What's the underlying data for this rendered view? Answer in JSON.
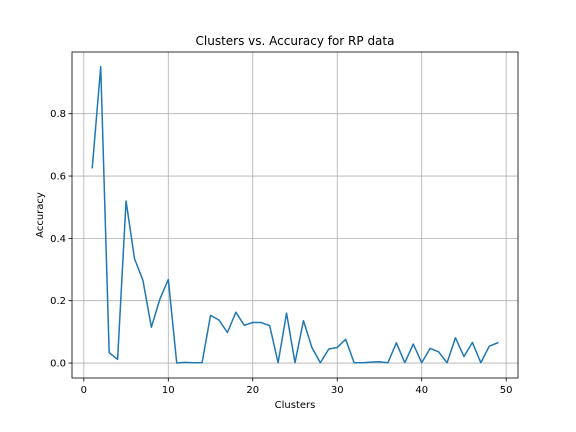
{
  "chart_data": {
    "type": "line",
    "title": "Clusters vs. Accuracy for RP data",
    "xlabel": "Clusters",
    "ylabel": "Accuracy",
    "xlim": [
      -1.4,
      51.4
    ],
    "ylim": [
      -0.048,
      0.998
    ],
    "xticks": [
      0,
      10,
      20,
      30,
      40,
      50
    ],
    "yticks": [
      0.0,
      0.2,
      0.4,
      0.6,
      0.8
    ],
    "ytick_labels": [
      "0.0",
      "0.2",
      "0.4",
      "0.6",
      "0.8"
    ],
    "grid": true,
    "series": [
      {
        "color": "#1f77b4",
        "x": [
          1,
          2,
          3,
          4,
          5,
          6,
          7,
          8,
          9,
          10,
          11,
          12,
          13,
          14,
          15,
          16,
          17,
          18,
          19,
          20,
          21,
          22,
          23,
          24,
          25,
          26,
          27,
          28,
          29,
          30,
          31,
          32,
          33,
          34,
          35,
          36,
          37,
          38,
          39,
          40,
          41,
          42,
          43,
          44,
          45,
          46,
          47,
          48,
          49
        ],
        "y": [
          0.627,
          0.951,
          0.033,
          0.012,
          0.52,
          0.335,
          0.265,
          0.115,
          0.205,
          0.268,
          0.0,
          0.002,
          0.001,
          0.001,
          0.153,
          0.138,
          0.098,
          0.163,
          0.121,
          0.13,
          0.13,
          0.12,
          0.001,
          0.16,
          0.001,
          0.136,
          0.05,
          0.001,
          0.045,
          0.05,
          0.076,
          0.001,
          0.001,
          0.003,
          0.004,
          0.001,
          0.065,
          0.001,
          0.061,
          0.001,
          0.047,
          0.036,
          0.001,
          0.081,
          0.021,
          0.066,
          0.001,
          0.054,
          0.065
        ]
      }
    ]
  }
}
